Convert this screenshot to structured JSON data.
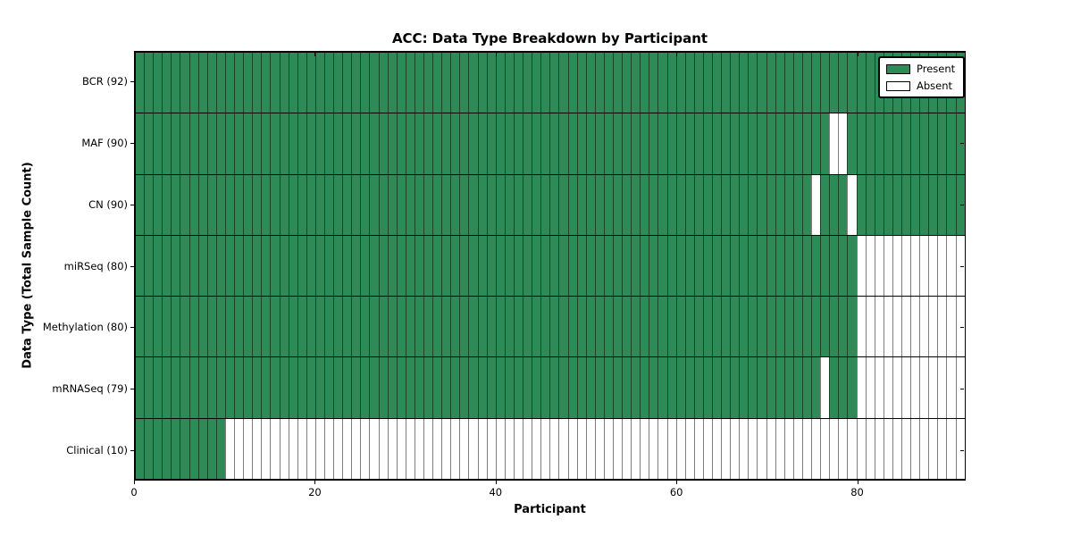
{
  "chart_data": {
    "type": "heatmap",
    "title": "ACC: Data Type Breakdown by Participant",
    "xlabel": "Participant",
    "ylabel": "Data Type (Total Sample Count)",
    "n_participants": 92,
    "x_ticks": [
      0,
      20,
      40,
      60,
      80
    ],
    "grid": false,
    "legend_position": "upper right",
    "legend": [
      {
        "label": "Present",
        "state": "present"
      },
      {
        "label": "Absent",
        "state": "absent"
      }
    ],
    "colors": {
      "present": "#2e8b57",
      "absent": "#ffffff",
      "cell_edge": "rgba(0,0,0,0.5)",
      "spine": "#000000"
    },
    "rows": [
      {
        "label": "BCR (92)",
        "name": "bcr",
        "count": 92,
        "absent_ranges": []
      },
      {
        "label": "MAF (90)",
        "name": "maf",
        "count": 90,
        "absent_ranges": [
          [
            77,
            79
          ]
        ]
      },
      {
        "label": "CN (90)",
        "name": "cn",
        "count": 90,
        "absent_ranges": [
          [
            75,
            76
          ],
          [
            79,
            80
          ]
        ]
      },
      {
        "label": "miRSeq (80)",
        "name": "mirseq",
        "count": 80,
        "absent_ranges": [
          [
            80,
            92
          ]
        ]
      },
      {
        "label": "Methylation (80)",
        "name": "methylation",
        "count": 80,
        "absent_ranges": [
          [
            80,
            92
          ]
        ]
      },
      {
        "label": "mRNASeq (79)",
        "name": "mrnaseq",
        "count": 79,
        "absent_ranges": [
          [
            76,
            77
          ],
          [
            80,
            92
          ]
        ]
      },
      {
        "label": "Clinical (10)",
        "name": "clinical",
        "count": 10,
        "absent_ranges": [
          [
            10,
            92
          ]
        ]
      }
    ]
  }
}
